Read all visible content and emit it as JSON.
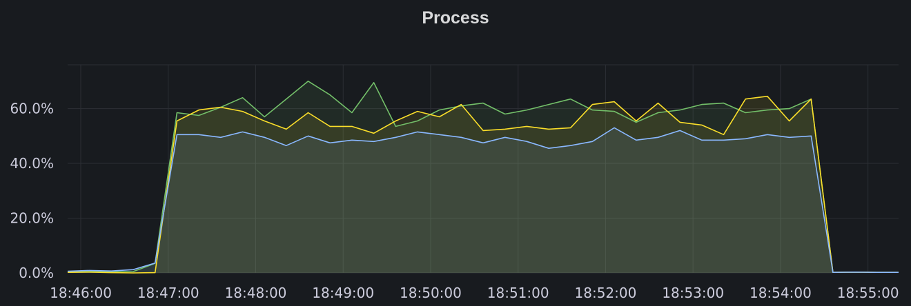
{
  "panel": {
    "title": "Process"
  },
  "chart_data": {
    "type": "area",
    "title": "Process",
    "xlabel": "",
    "ylabel": "",
    "x": [
      "18:45:51",
      "18:46:06",
      "18:46:21",
      "18:46:36",
      "18:46:51",
      "18:47:06",
      "18:47:21",
      "18:47:36",
      "18:47:51",
      "18:48:06",
      "18:48:21",
      "18:48:36",
      "18:48:51",
      "18:49:06",
      "18:49:21",
      "18:49:36",
      "18:49:51",
      "18:50:06",
      "18:50:21",
      "18:50:36",
      "18:50:51",
      "18:51:06",
      "18:51:21",
      "18:51:36",
      "18:51:51",
      "18:52:06",
      "18:52:21",
      "18:52:36",
      "18:52:51",
      "18:53:06",
      "18:53:21",
      "18:53:36",
      "18:53:51",
      "18:54:06",
      "18:54:21",
      "18:54:36",
      "18:54:51",
      "18:55:06",
      "18:55:21"
    ],
    "series": [
      {
        "color": "#73bf69",
        "values": [
          0.5,
          0.6,
          0.4,
          0.5,
          3.5,
          58.5,
          57.5,
          60.5,
          64.0,
          57.0,
          63.5,
          70.0,
          65.0,
          58.5,
          69.5,
          53.5,
          55.5,
          59.5,
          61.0,
          62.0,
          58.0,
          59.5,
          61.5,
          63.5,
          59.5,
          59.0,
          55.0,
          58.5,
          59.5,
          61.5,
          62.0,
          58.5,
          59.5,
          60.0,
          63.5,
          0.2,
          0.3,
          0.2,
          0.2
        ]
      },
      {
        "color": "#fade2a",
        "values": [
          0.2,
          0.3,
          0.1,
          0.0,
          0.1,
          55.5,
          59.5,
          60.5,
          59.0,
          55.5,
          52.5,
          58.5,
          53.5,
          53.5,
          51.0,
          55.5,
          59.0,
          57.0,
          61.5,
          52.0,
          52.5,
          53.5,
          52.5,
          53.0,
          61.5,
          62.5,
          55.5,
          62.0,
          55.0,
          54.0,
          50.5,
          63.5,
          64.5,
          55.5,
          63.5,
          0.2,
          0.3,
          0.2,
          0.2
        ]
      },
      {
        "color": "#8ab8ff",
        "values": [
          0.6,
          0.9,
          0.7,
          1.2,
          3.6,
          50.5,
          50.5,
          49.5,
          51.5,
          49.5,
          46.5,
          50.0,
          47.5,
          48.5,
          48.0,
          49.5,
          51.5,
          50.5,
          49.5,
          47.5,
          49.5,
          48.0,
          45.5,
          46.5,
          48.0,
          53.0,
          48.5,
          49.5,
          52.0,
          48.5,
          48.5,
          49.0,
          50.5,
          49.5,
          50.0,
          0.2,
          0.3,
          0.2,
          0.2
        ]
      }
    ],
    "x_ticks": [
      "18:46:00",
      "18:47:00",
      "18:48:00",
      "18:49:00",
      "18:50:00",
      "18:51:00",
      "18:52:00",
      "18:53:00",
      "18:54:00",
      "18:55:00"
    ],
    "y_ticks": [
      "0.0%",
      "20.0%",
      "40.0%",
      "60.0%"
    ],
    "xlim": [
      "18:45:51",
      "18:55:21"
    ],
    "ylim": [
      0,
      76
    ],
    "grid": true,
    "legend": "none"
  }
}
